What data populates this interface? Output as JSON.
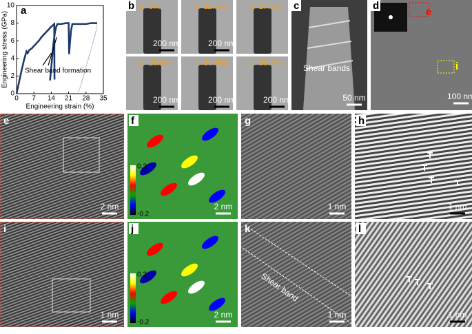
{
  "chart_data": {
    "type": "line",
    "panel_label": "a",
    "xlabel": "Engineering strain (%)",
    "ylabel": "Engineering stress (GPa)",
    "annotation": "Shear band formation",
    "xlim": [
      0,
      35
    ],
    "xticks": [
      0,
      7,
      14,
      21,
      28,
      35
    ],
    "ylim": [
      0,
      10
    ],
    "yticks": [
      0,
      2,
      4,
      6,
      8,
      10
    ],
    "series": [
      {
        "color": "#1f3a68",
        "x": [
          0,
          1,
          2,
          3,
          4,
          4.5,
          5,
          6,
          7,
          8,
          9,
          10,
          11,
          12,
          13,
          14,
          14.8,
          15.2,
          15.3
        ],
        "values": [
          0,
          1.3,
          2.6,
          3.8,
          4.8,
          4.6,
          4.9,
          5.1,
          5.4,
          5.7,
          6.0,
          6.4,
          6.7,
          7.0,
          7.3,
          7.6,
          7.8,
          7.9,
          1.6
        ]
      },
      {
        "color": "#1f3a68",
        "x": [
          13.5,
          14,
          14.5,
          15,
          15.5,
          16,
          16.5,
          18,
          20,
          21,
          21.2
        ],
        "values": [
          1.5,
          3,
          4.5,
          6,
          7,
          7.6,
          7.9,
          7.9,
          8.0,
          8.0,
          4.5
        ]
      },
      {
        "color": "#1f3a68",
        "x": [
          21.2,
          21.6,
          22,
          22.5,
          25,
          28,
          30,
          32.5
        ],
        "values": [
          4.5,
          6,
          7.2,
          7.9,
          7.9,
          7.9,
          8.0,
          8.0
        ]
      },
      {
        "color": "#8fa8d8",
        "x": [
          25,
          26,
          27,
          28,
          29,
          30,
          31,
          32,
          32.5
        ],
        "values": [
          0.2,
          1,
          2,
          3,
          4,
          5,
          6,
          7,
          7.9
        ]
      }
    ]
  },
  "panel_b": {
    "label": "b",
    "frames": [
      {
        "strain": "ε=0%",
        "scale": "200 nm"
      },
      {
        "strain": "ε=11.7%",
        "scale": "200 nm"
      },
      {
        "strain": "ε=17.5%"
      },
      {
        "strain": "ε=26.5%",
        "scale": "200 nm"
      },
      {
        "strain": "ε=30.6%",
        "scale": "200 nm"
      },
      {
        "strain": "ε=30.8%",
        "scale": "200 nm"
      }
    ]
  },
  "panel_c": {
    "label": "c",
    "annotation": "Shear bands",
    "scale": "50 nm"
  },
  "panel_d": {
    "label": "d",
    "scale": "100 nm",
    "marker_e": "e",
    "marker_i": "i"
  },
  "panel_e": {
    "label": "e",
    "scale": "2 nm"
  },
  "panel_f": {
    "label": "f",
    "scale": "2 nm",
    "colorbar": {
      "max": 0.2,
      "min": -0.2
    }
  },
  "panel_g": {
    "label": "g",
    "scale": "1 nm"
  },
  "panel_h": {
    "label": "h",
    "scale": "1 nm"
  },
  "panel_i": {
    "label": "i",
    "scale": "1 nm"
  },
  "panel_j": {
    "label": "j",
    "scale": "2 nm",
    "colorbar": {
      "max": 0.2,
      "min": -0.2
    }
  },
  "panel_k": {
    "label": "k",
    "annotation": "Shear band",
    "scale": "1 nm"
  },
  "panel_l": {
    "label": "l",
    "scale": "1 nm"
  }
}
